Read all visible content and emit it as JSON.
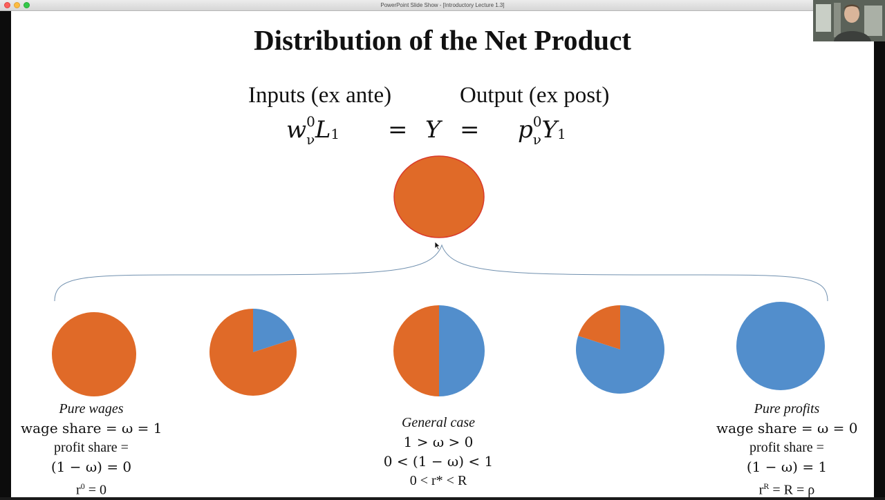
{
  "window": {
    "title": "PowerPoint Slide Show - [Introductory Lecture 1.3]"
  },
  "slide": {
    "title": "Distribution of  the Net Product",
    "inputs_header": "Inputs (ex ante)",
    "output_header": "Output (ex post)",
    "equation": {
      "lhs_var": "w",
      "lhs_sup": "0",
      "lhs_sub": "ν",
      "lhs_var2": "L",
      "lhs_sub2": "1",
      "eq1": "=",
      "mid": "Y",
      "eq2": "=",
      "rhs_var": "p",
      "rhs_sup": "0",
      "rhs_sub": "ν",
      "rhs_var2": "Y",
      "rhs_sub2": "1"
    },
    "pies": {
      "colors": {
        "wages": "#e06a28",
        "profits": "#528ecc",
        "outline": "#d93a2b"
      },
      "wage_shares": [
        1,
        0.8,
        0.5,
        0.2,
        0
      ]
    },
    "labels": {
      "left": {
        "case": "Pure wages",
        "line1": "wage share = ω = 1",
        "line2": "profit share =",
        "line3": "(1 − ω) = 0",
        "line4_base": "r",
        "line4_sup": "0",
        "line4_rest": " = 0"
      },
      "center": {
        "case": "General case",
        "line1": "1 > ω > 0",
        "line2": "0 < (1 − ω) < 1",
        "line3": "0 < r* < R"
      },
      "right": {
        "case": "Pure profits",
        "line1": "wage share = ω = 0",
        "line2": "profit share =",
        "line3": "(1 − ω) = 1",
        "line4_base": "r",
        "line4_sup": "R",
        "line4_rest": " = R = ρ"
      }
    }
  }
}
